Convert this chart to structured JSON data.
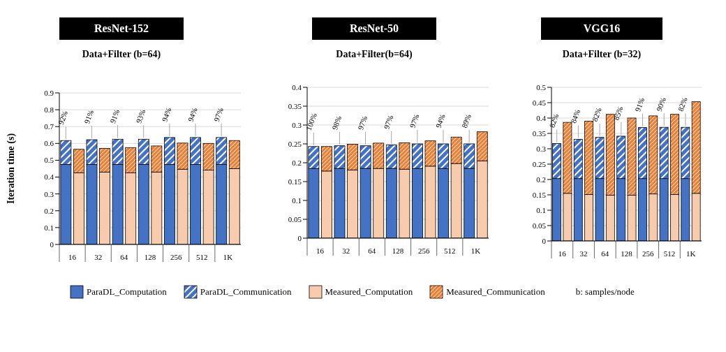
{
  "chart_data": [
    {
      "type": "bar",
      "title": "ResNet-152",
      "subtitle": "Data+Filter (b=64)",
      "ylabel": "Iteration time (s)",
      "stacked": true,
      "categories": [
        "16",
        null,
        "32",
        null,
        "64",
        null,
        "128",
        null,
        "256",
        null,
        "512",
        null,
        "1K",
        null
      ],
      "ylim": [
        0,
        0.9
      ],
      "yticks": [
        0,
        0.1,
        0.2,
        0.3,
        0.4,
        0.5,
        0.6,
        0.7,
        0.8,
        0.9
      ],
      "grid": "y",
      "legend": "bottom",
      "series": [
        {
          "name": "ParaDL_Computation",
          "color": "#4472c4",
          "values": [
            0.475,
            null,
            0.475,
            null,
            0.475,
            null,
            0.475,
            null,
            0.475,
            null,
            0.475,
            null,
            0.475,
            null
          ]
        },
        {
          "name": "ParaDL_Communication",
          "color": "#4472c4",
          "values": [
            0.142,
            null,
            0.147,
            null,
            0.15,
            null,
            0.15,
            null,
            0.16,
            null,
            0.16,
            null,
            0.16,
            null
          ]
        },
        {
          "name": "Measured_Computation",
          "color": "#f8cbad",
          "values": [
            null,
            0.425,
            null,
            0.43,
            null,
            0.425,
            null,
            0.43,
            null,
            0.447,
            null,
            0.442,
            null,
            0.45
          ]
        },
        {
          "name": "Measured_Communication",
          "color": "#ed7d31",
          "values": [
            null,
            0.14,
            null,
            0.14,
            null,
            0.15,
            null,
            0.155,
            null,
            0.155,
            null,
            0.158,
            null,
            0.167
          ]
        }
      ],
      "annotations": [
        {
          "text": "92%",
          "x": "16",
          "y": 0.617
        },
        {
          "text": "91%",
          "x": "32",
          "y": 0.622
        },
        {
          "text": "91%",
          "x": "64",
          "y": 0.625
        },
        {
          "text": "93%",
          "x": "128",
          "y": 0.625
        },
        {
          "text": "94%",
          "x": "256",
          "y": 0.635
        },
        {
          "text": "94%",
          "x": "512",
          "y": 0.635
        },
        {
          "text": "97%",
          "x": "1K",
          "y": 0.635
        },
        "b: samples/node"
      ]
    },
    {
      "type": "bar",
      "title": "ResNet-50",
      "subtitle": "Data+Filter(b=64)",
      "stacked": true,
      "categories": [
        "16",
        null,
        "32",
        null,
        "64",
        null,
        "128",
        null,
        "256",
        null,
        "512",
        null,
        "1K",
        null
      ],
      "ylim": [
        0,
        0.4
      ],
      "yticks": [
        0,
        0.05,
        0.1,
        0.15,
        0.2,
        0.25,
        0.3,
        0.35,
        0.4
      ],
      "grid": "y",
      "series": [
        {
          "color": "#4472c4",
          "values": [
            0.185,
            null,
            0.185,
            null,
            0.185,
            null,
            0.185,
            null,
            0.185,
            null,
            0.185,
            null,
            0.185,
            null
          ]
        },
        {
          "color": "#4472c4",
          "values": [
            0.058,
            null,
            0.06,
            null,
            0.06,
            null,
            0.062,
            null,
            0.065,
            null,
            0.065,
            null,
            0.065,
            null
          ]
        },
        {
          "color": "#f8cbad",
          "values": [
            null,
            0.178,
            null,
            0.181,
            null,
            0.185,
            null,
            0.183,
            null,
            0.191,
            null,
            0.198,
            null,
            0.205
          ]
        },
        {
          "color": "#ed7d31",
          "values": [
            null,
            0.065,
            null,
            0.068,
            null,
            0.067,
            null,
            0.07,
            null,
            0.067,
            null,
            0.07,
            null,
            0.077
          ]
        }
      ],
      "annotations": [
        {
          "text": "100%",
          "x": "16",
          "y": 0.243
        },
        {
          "text": "98%",
          "x": "32",
          "y": 0.245
        },
        {
          "text": "97%",
          "x": "64",
          "y": 0.245
        },
        {
          "text": "97%",
          "x": "128",
          "y": 0.247
        },
        {
          "text": "97%",
          "x": "256",
          "y": 0.25
        },
        {
          "text": "94%",
          "x": "512",
          "y": 0.25
        },
        {
          "text": "89%",
          "x": "1K",
          "y": 0.25
        }
      ]
    },
    {
      "type": "bar",
      "title": "VGG16",
      "subtitle": "Data+Filter (b=32)",
      "stacked": true,
      "categories": [
        "16",
        null,
        "32",
        null,
        "64",
        null,
        "128",
        null,
        "256",
        null,
        "512",
        null,
        "1K",
        null
      ],
      "ylim": [
        0,
        0.5
      ],
      "yticks": [
        0,
        0.05,
        0.1,
        0.15,
        0.2,
        0.25,
        0.3,
        0.35,
        0.4,
        0.45,
        0.5
      ],
      "grid": "y",
      "series": [
        {
          "color": "#4472c4",
          "values": [
            0.203,
            null,
            0.203,
            null,
            0.203,
            null,
            0.203,
            null,
            0.203,
            null,
            0.203,
            null,
            0.203,
            null
          ]
        },
        {
          "color": "#4472c4",
          "values": [
            0.114,
            null,
            0.128,
            null,
            0.134,
            null,
            0.138,
            null,
            0.166,
            null,
            0.167,
            null,
            0.167,
            null
          ]
        },
        {
          "color": "#f8cbad",
          "values": [
            null,
            0.155,
            null,
            0.151,
            null,
            0.149,
            null,
            0.149,
            null,
            0.153,
            null,
            0.151,
            null,
            0.155
          ]
        },
        {
          "color": "#ed7d31",
          "values": [
            null,
            0.231,
            null,
            0.239,
            null,
            0.263,
            null,
            0.251,
            null,
            0.254,
            null,
            0.261,
            null,
            0.298
          ]
        }
      ],
      "annotations": [
        {
          "text": "82%",
          "x": "16",
          "y": 0.317
        },
        {
          "text": "84%",
          "x": "32",
          "y": 0.331
        },
        {
          "text": "82%",
          "x": "64",
          "y": 0.337
        },
        {
          "text": "85%",
          "x": "128",
          "y": 0.341
        },
        {
          "text": "91%",
          "x": "256",
          "y": 0.369
        },
        {
          "text": "90%",
          "x": "512",
          "y": 0.37
        },
        {
          "text": "82%",
          "x": "1K",
          "y": 0.37
        }
      ]
    }
  ]
}
